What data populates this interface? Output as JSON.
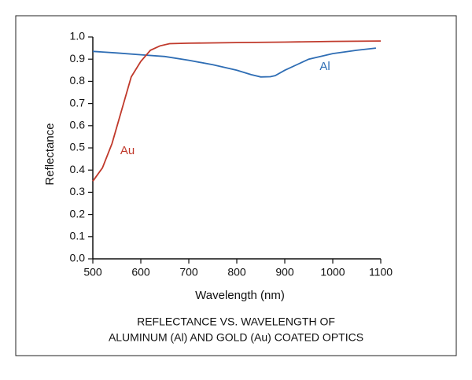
{
  "chart_data": {
    "type": "line",
    "x_label": "Wavelength (nm)",
    "y_label": "Reflectance",
    "caption": [
      "REFLECTANCE VS. WAVELENGTH OF",
      "ALUMINUM (Al) AND GOLD (Au) COATED OPTICS"
    ],
    "xlim": [
      500,
      1100
    ],
    "xticks": [
      500,
      600,
      700,
      800,
      900,
      1000,
      1100
    ],
    "ylim": [
      0,
      1
    ],
    "yticks": [
      {
        "value": 0,
        "label": "0.0"
      },
      0.1,
      0.2,
      0.3,
      0.4,
      0.5,
      0.6,
      0.7,
      0.8,
      0.9,
      {
        "value": 1,
        "label": "1.0"
      }
    ],
    "series": [
      {
        "name": "Al",
        "color": "#2e6db4",
        "x": [
          500,
          550,
          600,
          650,
          700,
          750,
          800,
          830,
          850,
          870,
          880,
          900,
          950,
          1000,
          1050,
          1090
        ],
        "values": [
          0.935,
          0.928,
          0.92,
          0.912,
          0.895,
          0.875,
          0.85,
          0.83,
          0.82,
          0.821,
          0.826,
          0.85,
          0.9,
          0.925,
          0.94,
          0.95
        ]
      },
      {
        "name": "Au",
        "color": "#c0392b",
        "x": [
          500,
          520,
          540,
          560,
          580,
          600,
          620,
          640,
          660,
          700,
          800,
          900,
          1000,
          1100
        ],
        "values": [
          0.35,
          0.41,
          0.52,
          0.67,
          0.82,
          0.89,
          0.94,
          0.96,
          0.97,
          0.972,
          0.975,
          0.977,
          0.98,
          0.982
        ]
      }
    ]
  }
}
